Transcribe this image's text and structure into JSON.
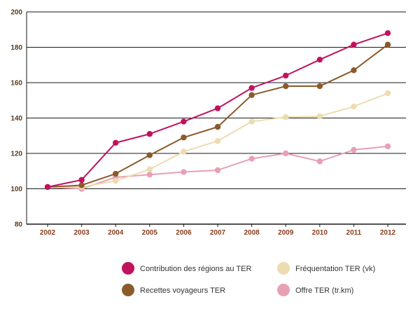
{
  "chart_data": {
    "type": "line",
    "title": "",
    "xlabel": "",
    "ylabel": "",
    "x": [
      "2002",
      "2003",
      "2004",
      "2005",
      "2006",
      "2007",
      "2008",
      "2009",
      "2010",
      "2011",
      "2012"
    ],
    "ylim": [
      80,
      200
    ],
    "yticks": [
      80,
      100,
      120,
      140,
      160,
      180,
      200
    ],
    "grid": "horizontal",
    "legend_position": "bottom",
    "series": [
      {
        "name": "Contribution des régions au TER",
        "color": "#c0135e",
        "values": [
          101,
          105,
          126,
          131,
          138,
          145.5,
          157,
          164,
          173,
          181.5,
          188
        ]
      },
      {
        "name": "Recettes voyageurs TER",
        "color": "#8b5a2b",
        "values": [
          101,
          102,
          108.5,
          119,
          129,
          135,
          153,
          158,
          158,
          167,
          181.5
        ]
      },
      {
        "name": "Fréquentation TER (vk)",
        "color": "#ecdcb0",
        "values": [
          101,
          101,
          104.5,
          111,
          121,
          127,
          138,
          140.5,
          141,
          146.5,
          154
        ]
      },
      {
        "name": "Offre TER (tr.km)",
        "color": "#e8a0b4",
        "values": [
          101,
          100,
          106.5,
          108,
          109.5,
          110.5,
          117,
          120,
          115.5,
          122,
          124
        ]
      }
    ]
  }
}
